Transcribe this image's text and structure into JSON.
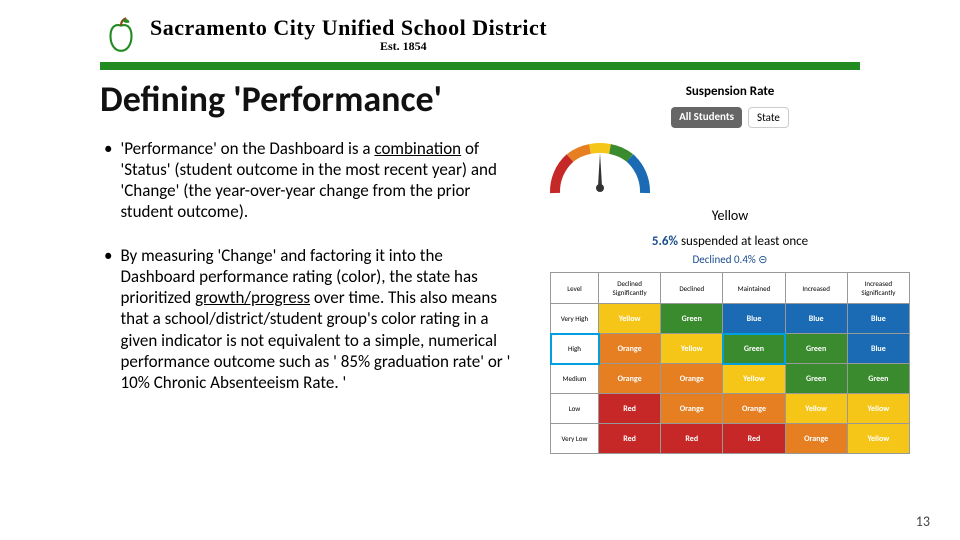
{
  "header": {
    "district": "Sacramento City Unified School District",
    "est": "Est. 1854",
    "bar_color": "#228B22"
  },
  "title": "Defining 'Performance'",
  "bullets": [
    {
      "pre": "'Performance' on the Dashboard is a ",
      "u": "combination",
      "post": " of 'Status' (student outcome in the most recent year) and 'Change' (the year-over-year change from the prior student outcome)."
    },
    {
      "pre": "By measuring 'Change' and factoring it into the Dashboard performance rating (color), the state has prioritized ",
      "u": "growth/progress",
      "post": " over time.  This also means that a school/district/student group's color rating in a given indicator is not equivalent to a simple, numerical performance outcome such as ' 85% graduation rate' or ' 10% Chronic Absenteeism Rate. '"
    }
  ],
  "card": {
    "title": "Suspension Rate",
    "pill_all": "All Students",
    "pill_state": "State",
    "gauge_color": "Yellow",
    "stat_pct": "5.6%",
    "stat_text": " suspended at least once",
    "decline": "Declined 0.4% ⊝"
  },
  "matrix": {
    "columns": [
      "Level",
      "Declined Significantly",
      "Declined",
      "Maintained",
      "Increased",
      "Increased Significantly"
    ],
    "rows": [
      {
        "label": "Very High",
        "cells": [
          "Yellow",
          "Green",
          "Blue",
          "Blue",
          "Blue"
        ]
      },
      {
        "label": "High",
        "cells": [
          "Orange",
          "Yellow",
          "Green",
          "Green",
          "Blue"
        ],
        "highlight_row": true,
        "highlight_col": 2
      },
      {
        "label": "Medium",
        "cells": [
          "Orange",
          "Orange",
          "Yellow",
          "Green",
          "Green"
        ]
      },
      {
        "label": "Low",
        "cells": [
          "Red",
          "Orange",
          "Orange",
          "Yellow",
          "Yellow"
        ]
      },
      {
        "label": "Very Low",
        "cells": [
          "Red",
          "Red",
          "Red",
          "Orange",
          "Yellow"
        ]
      }
    ],
    "colors": {
      "Blue": "#1a6bb3",
      "Green": "#3a8a2e",
      "Yellow": "#f5c518",
      "Orange": "#e67e22",
      "Red": "#c62828"
    }
  },
  "page_num": "13"
}
